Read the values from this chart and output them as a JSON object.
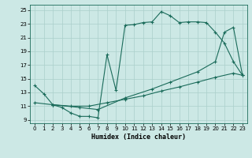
{
  "xlabel": "Humidex (Indice chaleur)",
  "bg_color": "#cce8e5",
  "line_color": "#1a6b5a",
  "grid_color": "#aacfcb",
  "xlim": [
    -0.5,
    23.5
  ],
  "ylim": [
    8.5,
    25.8
  ],
  "yticks": [
    9,
    11,
    13,
    15,
    17,
    19,
    21,
    23,
    25
  ],
  "xticks": [
    0,
    1,
    2,
    3,
    4,
    5,
    6,
    7,
    8,
    9,
    10,
    11,
    12,
    13,
    14,
    15,
    16,
    17,
    18,
    19,
    20,
    21,
    22,
    23
  ],
  "line1_x": [
    0,
    1,
    2,
    3,
    4,
    5,
    6,
    7,
    8,
    9,
    10,
    11,
    12,
    13,
    14,
    15,
    16,
    17,
    18,
    19,
    20,
    21,
    22,
    23
  ],
  "line1_y": [
    14.0,
    12.8,
    11.2,
    10.8,
    10.0,
    9.5,
    9.5,
    9.3,
    18.5,
    13.3,
    22.8,
    22.9,
    23.2,
    23.3,
    24.8,
    24.2,
    23.2,
    23.3,
    23.3,
    23.2,
    21.8,
    20.2,
    17.5,
    15.5
  ],
  "line2_x": [
    0,
    2,
    5,
    7,
    10,
    13,
    15,
    18,
    20,
    21,
    22,
    23
  ],
  "line2_y": [
    11.5,
    11.2,
    10.8,
    10.5,
    12.2,
    13.5,
    14.5,
    16.0,
    17.5,
    21.8,
    22.5,
    15.5
  ],
  "line3_x": [
    2,
    4,
    6,
    8,
    10,
    12,
    14,
    16,
    18,
    20,
    22,
    23
  ],
  "line3_y": [
    11.2,
    11.0,
    11.0,
    11.5,
    12.0,
    12.5,
    13.2,
    13.8,
    14.5,
    15.2,
    15.8,
    15.5
  ],
  "xlabel_fontsize": 6,
  "tick_fontsize": 5
}
